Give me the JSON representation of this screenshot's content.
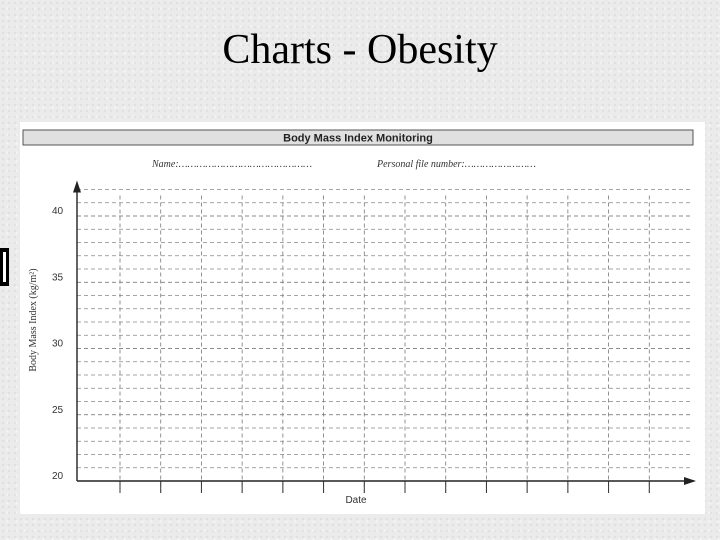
{
  "slide": {
    "title": "Charts - Obesity"
  },
  "chart_data": {
    "type": "line",
    "title": "Body Mass Index Monitoring",
    "name_label": "Name:………………………………………",
    "file_label": "Personal file number:……………………",
    "ylabel": "Body Mass Index (kg/m²)",
    "xlabel": "Date",
    "ylim": [
      20,
      42
    ],
    "yticks": [
      40,
      35,
      30,
      25,
      20
    ],
    "minor_step": 1,
    "x_columns": 14,
    "series": [],
    "grid": true
  }
}
